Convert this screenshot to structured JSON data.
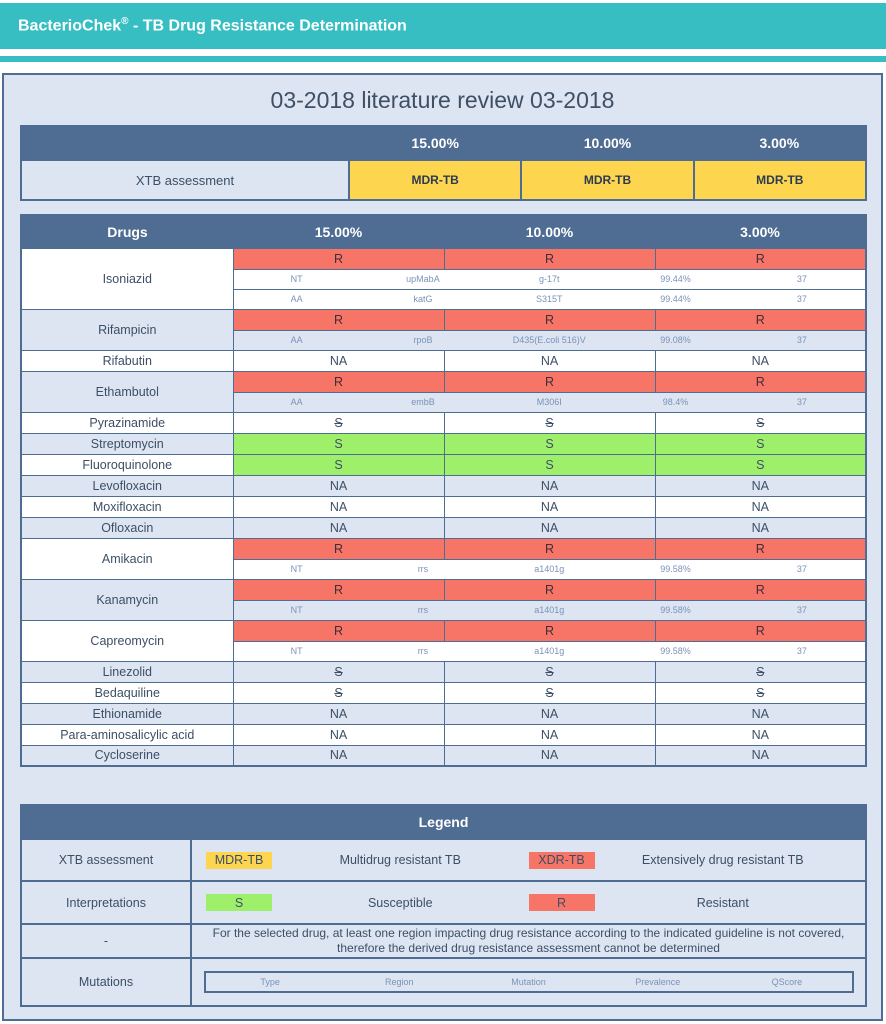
{
  "header": {
    "title_prefix": "BacterioChek",
    "title_reg": "®",
    "title_suffix": " - TB Drug Resistance Determination"
  },
  "report": {
    "title": "03-2018 literature review 03-2018"
  },
  "xtb": {
    "columns": [
      "15.00%",
      "10.00%",
      "3.00%"
    ],
    "label": "XTB assessment",
    "values": [
      "MDR-TB",
      "MDR-TB",
      "MDR-TB"
    ]
  },
  "drugs_table": {
    "header": "Drugs",
    "columns": [
      "15.00%",
      "10.00%",
      "3.00%"
    ],
    "rows": [
      {
        "name": "Isoniazid",
        "results": [
          "R",
          "R",
          "R"
        ],
        "type": "R",
        "mutations": [
          {
            "type": "NT",
            "region": "upMabA",
            "mutation": "g-17t",
            "prevalence": "99.44%",
            "qscore": "37"
          },
          {
            "type": "AA",
            "region": "katG",
            "mutation": "S315T",
            "prevalence": "99.44%",
            "qscore": "37"
          }
        ]
      },
      {
        "name": "Rifampicin",
        "results": [
          "R",
          "R",
          "R"
        ],
        "type": "R",
        "mutations": [
          {
            "type": "AA",
            "region": "rpoB",
            "mutation": "D435(E.coli 516)V",
            "prevalence": "99.08%",
            "qscore": "37"
          }
        ]
      },
      {
        "name": "Rifabutin",
        "results": [
          "NA",
          "NA",
          "NA"
        ],
        "type": "NA"
      },
      {
        "name": "Ethambutol",
        "results": [
          "R",
          "R",
          "R"
        ],
        "type": "R",
        "mutations": [
          {
            "type": "AA",
            "region": "embB",
            "mutation": "M306I",
            "prevalence": "98.4%",
            "qscore": "37"
          }
        ]
      },
      {
        "name": "Pyrazinamide",
        "results": [
          "S",
          "S",
          "S"
        ],
        "type": "SS"
      },
      {
        "name": "Streptomycin",
        "results": [
          "S",
          "S",
          "S"
        ],
        "type": "S"
      },
      {
        "name": "Fluoroquinolone",
        "results": [
          "S",
          "S",
          "S"
        ],
        "type": "S"
      },
      {
        "name": "Levofloxacin",
        "results": [
          "NA",
          "NA",
          "NA"
        ],
        "type": "NA"
      },
      {
        "name": "Moxifloxacin",
        "results": [
          "NA",
          "NA",
          "NA"
        ],
        "type": "NA"
      },
      {
        "name": "Ofloxacin",
        "results": [
          "NA",
          "NA",
          "NA"
        ],
        "type": "NA"
      },
      {
        "name": "Amikacin",
        "results": [
          "R",
          "R",
          "R"
        ],
        "type": "R",
        "mutations": [
          {
            "type": "NT",
            "region": "rrs",
            "mutation": "a1401g",
            "prevalence": "99.58%",
            "qscore": "37"
          }
        ]
      },
      {
        "name": "Kanamycin",
        "results": [
          "R",
          "R",
          "R"
        ],
        "type": "R",
        "mutations": [
          {
            "type": "NT",
            "region": "rrs",
            "mutation": "a1401g",
            "prevalence": "99.58%",
            "qscore": "37"
          }
        ]
      },
      {
        "name": "Capreomycin",
        "results": [
          "R",
          "R",
          "R"
        ],
        "type": "R",
        "mutations": [
          {
            "type": "NT",
            "region": "rrs",
            "mutation": "a1401g",
            "prevalence": "99.58%",
            "qscore": "37"
          }
        ]
      },
      {
        "name": "Linezolid",
        "results": [
          "S",
          "S",
          "S"
        ],
        "type": "SS"
      },
      {
        "name": "Bedaquiline",
        "results": [
          "S",
          "S",
          "S"
        ],
        "type": "SS"
      },
      {
        "name": "Ethionamide",
        "results": [
          "NA",
          "NA",
          "NA"
        ],
        "type": "NA"
      },
      {
        "name": "Para-aminosalicylic acid",
        "results": [
          "NA",
          "NA",
          "NA"
        ],
        "type": "NA"
      },
      {
        "name": "Cycloserine",
        "results": [
          "NA",
          "NA",
          "NA"
        ],
        "type": "NA"
      }
    ]
  },
  "legend": {
    "title": "Legend",
    "xtb": {
      "label": "XTB assessment",
      "mdr_chip": "MDR-TB",
      "mdr_desc": "Multidrug resistant TB",
      "xdr_chip": "XDR-TB",
      "xdr_desc": "Extensively drug resistant TB"
    },
    "interpretations": {
      "label": "Interpretations",
      "s_chip": "S",
      "s_desc": "Susceptible",
      "r_chip": "R",
      "r_desc": "Resistant"
    },
    "dash": {
      "label": "-",
      "desc": "For the selected drug, at least one region impacting drug resistance according to the indicated guideline is not covered, therefore the derived drug resistance assessment cannot be determined"
    },
    "mutations": {
      "label": "Mutations",
      "columns": [
        "Type",
        "Region",
        "Mutation",
        "Prevalence",
        "QScore"
      ]
    }
  },
  "colors": {
    "header_teal": "#36bec2",
    "table_header": "#4f6c93",
    "panel_bg": "#dce5f1",
    "mdr_yellow": "#fdd54f",
    "resistant_red": "#f77566",
    "susceptible_green": "#9ef06b"
  }
}
